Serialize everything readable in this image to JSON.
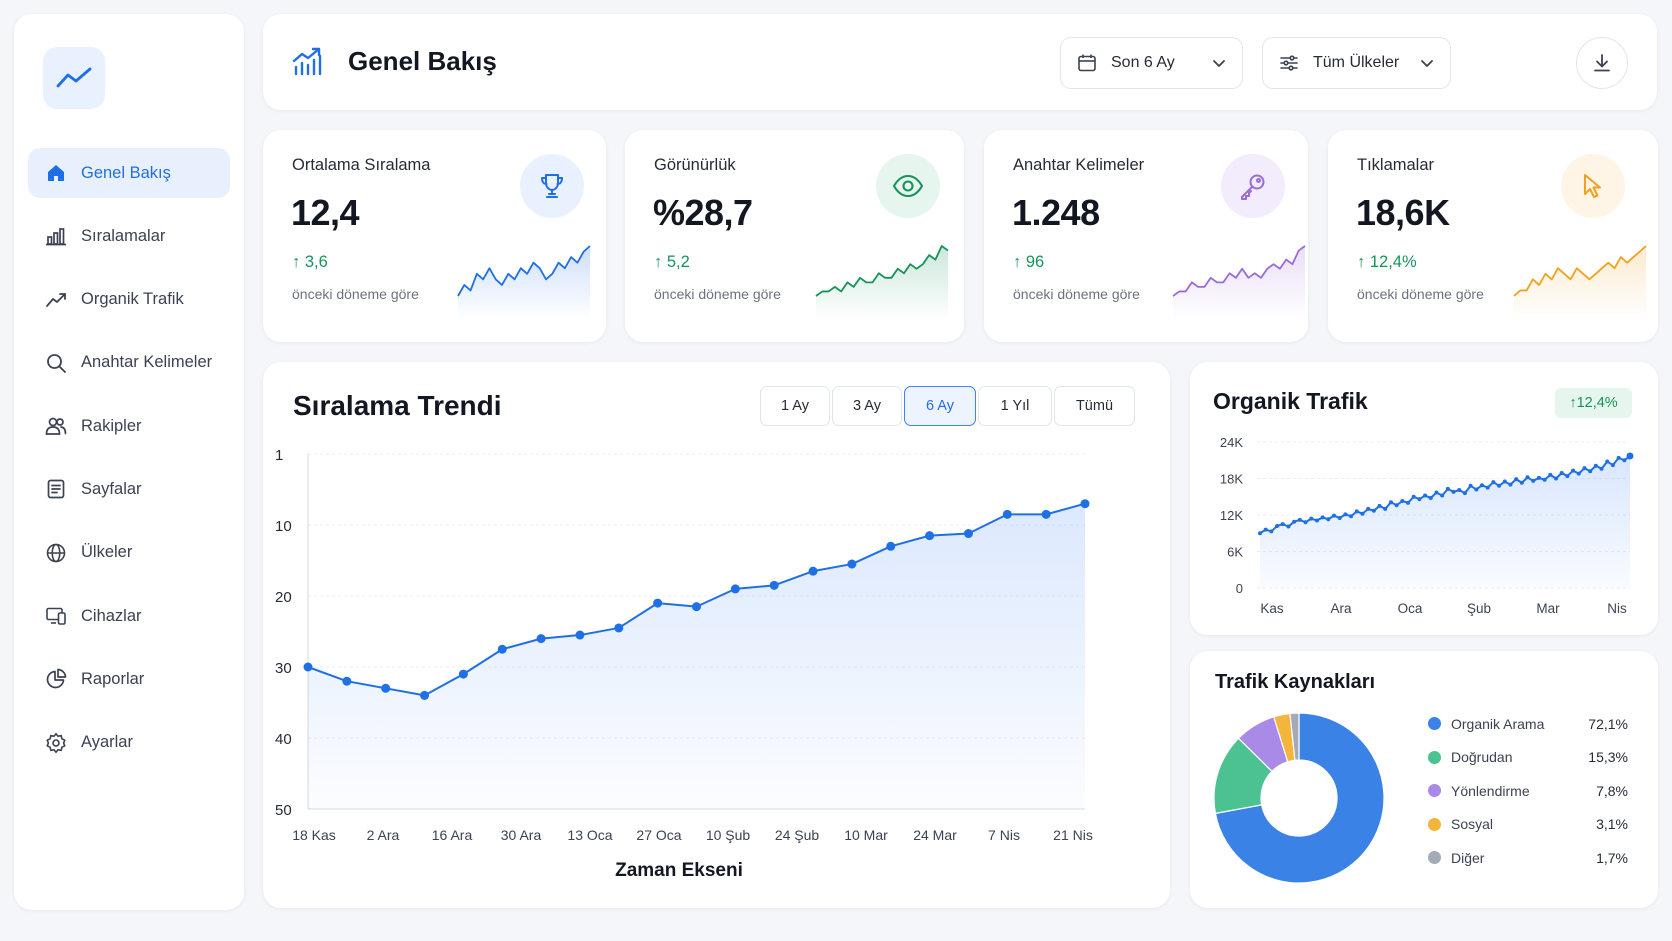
{
  "app": {
    "title": "Genel Bakış"
  },
  "sidebar": {
    "logo_icon": "trend-line-icon",
    "items": [
      {
        "label": "Genel Bakış",
        "icon": "home-icon",
        "active": true
      },
      {
        "label": "Sıralamalar",
        "icon": "bar-chart-icon"
      },
      {
        "label": "Organik Trafik",
        "icon": "trend-icon"
      },
      {
        "label": "Anahtar Kelimeler",
        "icon": "search-icon"
      },
      {
        "label": "Rakipler",
        "icon": "users-icon"
      },
      {
        "label": "Sayfalar",
        "icon": "document-icon"
      },
      {
        "label": "Ülkeler",
        "icon": "globe-icon"
      },
      {
        "label": "Cihazlar",
        "icon": "devices-icon"
      },
      {
        "label": "Raporlar",
        "icon": "pie-icon"
      },
      {
        "label": "Ayarlar",
        "icon": "gear-icon"
      }
    ]
  },
  "header": {
    "title": "Genel Bakış",
    "period_select": "Son 6 Ay",
    "country_select": "Tüm Ülkeler",
    "download_icon": "download-icon"
  },
  "kpis": [
    {
      "label": "Ortalama Sıralama",
      "value": "12,4",
      "delta": "3,6",
      "sub": "önceki döneme göre",
      "icon": "trophy-icon",
      "color": "#1f6fe5",
      "bg": "#eaf1fe",
      "spark": [
        3,
        5,
        4,
        7,
        6,
        8,
        6,
        5,
        7,
        6,
        8,
        7,
        9,
        8,
        6,
        7,
        9,
        8,
        10,
        9,
        11,
        12
      ]
    },
    {
      "label": "Görünürlük",
      "value": "%28,7",
      "delta": "5,2",
      "sub": "önceki döneme göre",
      "icon": "eye-icon",
      "color": "#17935a",
      "bg": "#e6f6ee",
      "spark": [
        2,
        3,
        3,
        4,
        3,
        5,
        4,
        6,
        5,
        5,
        7,
        6,
        6,
        8,
        7,
        9,
        8,
        9,
        11,
        10,
        13,
        12
      ]
    },
    {
      "label": "Anahtar Kelimeler",
      "value": "1.248",
      "delta": "96",
      "sub": "önceki döneme göre",
      "icon": "key-icon",
      "color": "#9b6bd6",
      "bg": "#f2ecfc",
      "spark": [
        2,
        3,
        3,
        5,
        4,
        4,
        6,
        5,
        5,
        7,
        6,
        8,
        6,
        7,
        6,
        8,
        9,
        8,
        10,
        9,
        12,
        13
      ]
    },
    {
      "label": "Tıklamalar",
      "value": "18,6K",
      "delta": "12,4%",
      "sub": "önceki döneme göre",
      "icon": "cursor-icon",
      "color": "#f0a21f",
      "bg": "#fef5e6",
      "spark": [
        3,
        4,
        4,
        6,
        5,
        7,
        6,
        8,
        7,
        6,
        8,
        7,
        6,
        7,
        8,
        9,
        8,
        10,
        9,
        10,
        11,
        12
      ]
    }
  ],
  "ranking_trend": {
    "title": "Sıralama Trendi",
    "ranges": [
      "1 Ay",
      "3 Ay",
      "6 Ay",
      "1 Yıl",
      "Tümü"
    ],
    "active_range": "6 Ay",
    "chart_data": {
      "type": "line",
      "title": "Sıralama Trendi",
      "xlabel": "Zaman Ekseni",
      "ylabel": "",
      "x_ticks": [
        "18 Kas",
        "2 Ara",
        "16 Ara",
        "30 Ara",
        "13 Oca",
        "27 Oca",
        "10 Şub",
        "24 Şub",
        "10 Mar",
        "24 Mar",
        "7 Nis",
        "21 Nis"
      ],
      "y_ticks": [
        1,
        10,
        20,
        30,
        40,
        50
      ],
      "ylim": [
        50,
        1
      ],
      "y_inverted": true,
      "values": [
        30,
        32,
        33,
        34,
        31,
        27.5,
        26,
        25.5,
        24.5,
        21,
        21.5,
        19,
        18.5,
        16.5,
        15.5,
        13,
        11.5,
        11.2,
        8.5,
        8.5,
        7
      ],
      "color": "#1f6fe5",
      "grid": true
    }
  },
  "organic_traffic": {
    "title": "Organik Trafik",
    "badge": "12,4%",
    "chart_data": {
      "type": "area",
      "title": "Organik Trafik",
      "x_ticks": [
        "Kas",
        "Ara",
        "Oca",
        "Şub",
        "Mar",
        "Nis"
      ],
      "y_ticks": [
        "0",
        "6K",
        "12K",
        "18K",
        "24K"
      ],
      "ylim": [
        0,
        24000
      ],
      "values": [
        9000,
        9600,
        9300,
        10200,
        10500,
        10100,
        10900,
        11200,
        10800,
        11400,
        11100,
        11600,
        11300,
        11900,
        11500,
        12100,
        11800,
        12600,
        12200,
        13000,
        12700,
        13500,
        13000,
        14100,
        13600,
        14300,
        14000,
        15000,
        14600,
        15200,
        14800,
        15700,
        15200,
        16300,
        15800,
        16100,
        15600,
        16800,
        16200,
        16900,
        16500,
        17400,
        16800,
        17500,
        17000,
        17900,
        17300,
        18200,
        17600,
        18100,
        17800,
        18600,
        18000,
        18900,
        18400,
        19300,
        18800,
        19700,
        19200,
        20100,
        19600,
        20800,
        20200,
        21400,
        21000,
        21700
      ]
    }
  },
  "traffic_sources": {
    "title": "Trafik Kaynakları",
    "chart_data": {
      "type": "pie",
      "title": "Trafik Kaynakları",
      "slices": [
        {
          "name": "Organik Arama",
          "value": 72.1,
          "label": "72,1%",
          "color": "#3b82e6"
        },
        {
          "name": "Doğrudan",
          "value": 15.3,
          "label": "15,3%",
          "color": "#4cc292"
        },
        {
          "name": "Yönlendirme",
          "value": 7.8,
          "label": "7,8%",
          "color": "#a98ae6"
        },
        {
          "name": "Sosyal",
          "value": 3.1,
          "label": "3,1%",
          "color": "#f5b53d"
        },
        {
          "name": "Diğer",
          "value": 1.7,
          "label": "1,7%",
          "color": "#a5abb6"
        }
      ]
    }
  }
}
